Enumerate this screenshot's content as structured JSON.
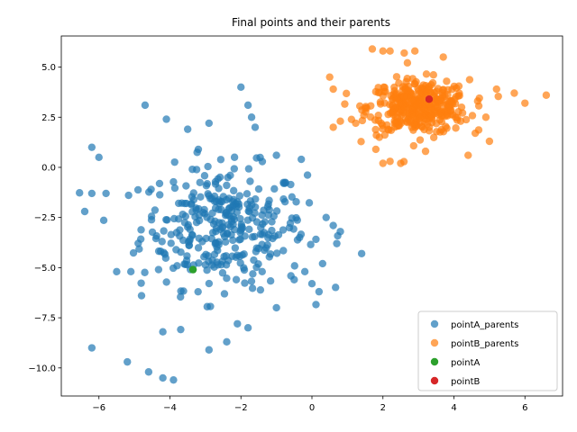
{
  "chart_data": {
    "type": "scatter",
    "title": "Final points and their parents",
    "xlabel": "",
    "ylabel": "",
    "xlim": [
      -7.06,
      7.06
    ],
    "ylim": [
      -11.4,
      6.55
    ],
    "xticks": [
      -6,
      -4,
      -2,
      0,
      2,
      4,
      6
    ],
    "xtick_labels": [
      "−6",
      "−4",
      "−2",
      "0",
      "2",
      "4",
      "6"
    ],
    "yticks": [
      -10.0,
      -7.5,
      -5.0,
      -2.5,
      0.0,
      2.5,
      5.0
    ],
    "ytick_labels": [
      "−10.0",
      "−7.5",
      "−5.0",
      "−2.5",
      "0.0",
      "2.5",
      "5.0"
    ],
    "grid": false,
    "legend_position": "lower-right",
    "series": [
      {
        "name": "pointA_parents",
        "color": "#1f77b4",
        "marker": "circle",
        "alpha": 0.7,
        "cluster": {
          "center": [
            -2.5,
            -3.0
          ],
          "spread": [
            1.55,
            2.0
          ],
          "count": 330
        },
        "points": [
          [
            -4.7,
            3.1
          ],
          [
            -2.0,
            4.0
          ],
          [
            -1.8,
            3.1
          ],
          [
            -1.7,
            2.5
          ],
          [
            -2.9,
            2.2
          ],
          [
            -1.6,
            2.0
          ],
          [
            -4.1,
            2.4
          ],
          [
            -3.5,
            1.9
          ],
          [
            -6.0,
            0.5
          ],
          [
            -6.2,
            1.0
          ],
          [
            -3.2,
            0.9
          ],
          [
            -0.3,
            0.4
          ],
          [
            -1.0,
            0.6
          ],
          [
            -6.4,
            -2.2
          ],
          [
            -5.8,
            -1.3
          ],
          [
            -6.2,
            -1.3
          ],
          [
            0.4,
            -2.5
          ],
          [
            0.6,
            -2.9
          ],
          [
            0.8,
            -3.2
          ],
          [
            1.4,
            -4.3
          ],
          [
            0.7,
            -3.8
          ],
          [
            0.3,
            -4.8
          ],
          [
            0.0,
            -5.8
          ],
          [
            0.2,
            -6.2
          ],
          [
            -6.2,
            -9.0
          ],
          [
            -5.2,
            -9.7
          ],
          [
            -4.6,
            -10.2
          ],
          [
            -4.2,
            -10.5
          ],
          [
            -3.9,
            -10.6
          ],
          [
            -2.9,
            -9.1
          ],
          [
            -2.4,
            -8.7
          ],
          [
            -4.2,
            -8.2
          ],
          [
            -1.8,
            -8.0
          ],
          [
            -2.1,
            -7.8
          ],
          [
            -4.8,
            -6.4
          ],
          [
            -5.1,
            -5.2
          ],
          [
            -5.5,
            -5.2
          ],
          [
            -1.0,
            -7.0
          ],
          [
            -0.5,
            -5.6
          ],
          [
            -0.2,
            -5.2
          ]
        ]
      },
      {
        "name": "pointB_parents",
        "color": "#ff7f0e",
        "marker": "circle",
        "alpha": 0.7,
        "cluster": {
          "center": [
            3.0,
            3.0
          ],
          "spread": [
            0.95,
            0.9
          ],
          "count": 380
        },
        "points": [
          [
            1.7,
            5.9
          ],
          [
            2.0,
            5.8
          ],
          [
            2.2,
            5.8
          ],
          [
            2.6,
            5.7
          ],
          [
            2.9,
            5.8
          ],
          [
            3.7,
            5.5
          ],
          [
            0.5,
            4.5
          ],
          [
            0.6,
            3.9
          ],
          [
            0.6,
            2.0
          ],
          [
            0.8,
            2.3
          ],
          [
            6.6,
            3.6
          ],
          [
            6.0,
            3.2
          ],
          [
            5.7,
            3.7
          ],
          [
            5.2,
            3.9
          ],
          [
            4.4,
            0.6
          ],
          [
            2.5,
            0.2
          ],
          [
            2.0,
            0.2
          ],
          [
            2.2,
            0.3
          ],
          [
            1.8,
            0.9
          ],
          [
            1.9,
            1.5
          ],
          [
            3.2,
            0.8
          ],
          [
            5.0,
            1.3
          ],
          [
            4.6,
            1.7
          ],
          [
            4.9,
            2.5
          ]
        ]
      },
      {
        "name": "pointA",
        "color": "#2ca02c",
        "marker": "circle",
        "alpha": 1,
        "points": [
          [
            -3.35,
            -5.1
          ]
        ]
      },
      {
        "name": "pointB",
        "color": "#d62728",
        "marker": "circle",
        "alpha": 1,
        "points": [
          [
            3.3,
            3.4
          ]
        ]
      }
    ]
  }
}
